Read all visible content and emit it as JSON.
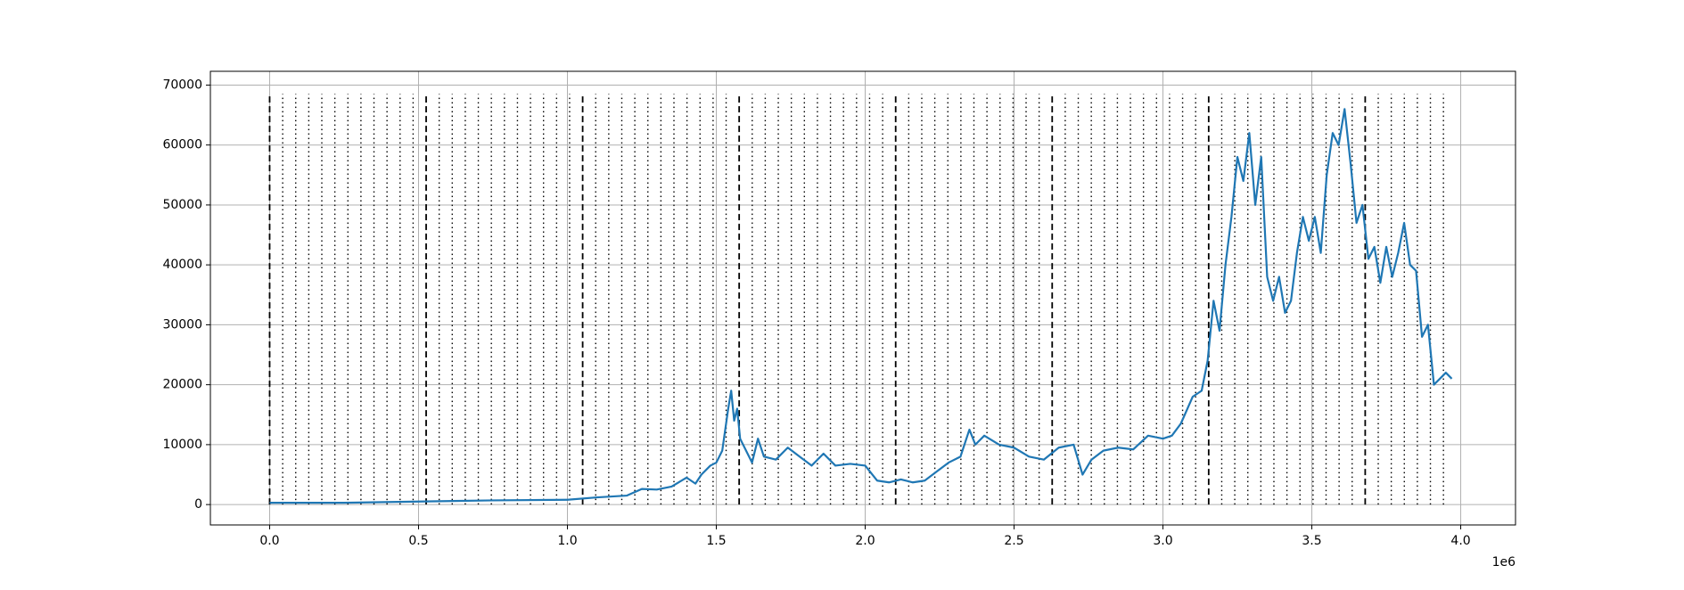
{
  "chart_data": {
    "type": "line",
    "x_offset_label": "1e6",
    "xlim": [
      -199000,
      4184000
    ],
    "ylim": [
      -3400,
      72300
    ],
    "xticks": [
      {
        "value": 0,
        "label": "0.0"
      },
      {
        "value": 500000,
        "label": "0.5"
      },
      {
        "value": 1000000,
        "label": "1.0"
      },
      {
        "value": 1500000,
        "label": "1.5"
      },
      {
        "value": 2000000,
        "label": "2.0"
      },
      {
        "value": 2500000,
        "label": "2.5"
      },
      {
        "value": 3000000,
        "label": "3.0"
      },
      {
        "value": 3500000,
        "label": "3.5"
      },
      {
        "value": 4000000,
        "label": "4.0"
      }
    ],
    "yticks": [
      0,
      10000,
      20000,
      30000,
      40000,
      50000,
      60000,
      70000
    ],
    "grid": true,
    "vline_range": [
      0,
      68500
    ],
    "dashed_lines": [
      0,
      525600,
      1051200,
      1576800,
      2102400,
      2628000,
      3153600,
      3679200
    ],
    "dotted_lines": [
      43800,
      87600,
      131400,
      175200,
      219000,
      262800,
      306600,
      350400,
      394200,
      438000,
      481800,
      569400,
      613200,
      657000,
      700800,
      744600,
      788400,
      832200,
      876000,
      919800,
      963600,
      1007400,
      1095000,
      1138800,
      1182600,
      1226400,
      1270200,
      1314000,
      1357800,
      1401600,
      1445400,
      1489200,
      1533000,
      1620600,
      1664400,
      1708200,
      1752000,
      1795800,
      1839600,
      1883400,
      1927200,
      1971000,
      2014800,
      2058600,
      2146200,
      2190000,
      2233800,
      2277600,
      2321400,
      2365200,
      2409000,
      2452800,
      2496600,
      2540400,
      2584200,
      2671800,
      2715600,
      2759400,
      2803200,
      2847000,
      2890800,
      2934600,
      2978400,
      3022200,
      3066000,
      3109800,
      3197400,
      3241200,
      3285000,
      3328800,
      3372600,
      3416400,
      3460200,
      3504000,
      3547800,
      3591600,
      3635400,
      3723000,
      3766800,
      3810600,
      3854400,
      3898200,
      3942000
    ],
    "series": [
      {
        "color": "#1f77b4",
        "x": [
          0,
          250000,
          500000,
          750000,
          1000000,
          1100000,
          1200000,
          1250000,
          1300000,
          1350000,
          1400000,
          1430000,
          1450000,
          1480000,
          1500000,
          1520000,
          1540000,
          1550000,
          1560000,
          1570000,
          1580000,
          1600000,
          1620000,
          1640000,
          1660000,
          1700000,
          1740000,
          1780000,
          1820000,
          1860000,
          1900000,
          1950000,
          2000000,
          2040000,
          2080000,
          2120000,
          2160000,
          2200000,
          2240000,
          2280000,
          2320000,
          2350000,
          2370000,
          2400000,
          2450000,
          2500000,
          2550000,
          2600000,
          2650000,
          2700000,
          2730000,
          2760000,
          2800000,
          2850000,
          2900000,
          2950000,
          3000000,
          3030000,
          3060000,
          3100000,
          3130000,
          3150000,
          3170000,
          3190000,
          3210000,
          3230000,
          3250000,
          3270000,
          3290000,
          3310000,
          3330000,
          3350000,
          3370000,
          3390000,
          3410000,
          3430000,
          3450000,
          3470000,
          3490000,
          3510000,
          3530000,
          3550000,
          3570000,
          3590000,
          3610000,
          3630000,
          3650000,
          3670000,
          3690000,
          3710000,
          3730000,
          3750000,
          3770000,
          3790000,
          3810000,
          3830000,
          3850000,
          3870000,
          3890000,
          3910000,
          3930000,
          3950000,
          3970000
        ],
        "values": [
          300,
          300,
          500,
          700,
          800,
          1200,
          1500,
          2600,
          2500,
          3000,
          4500,
          3500,
          5000,
          6500,
          7000,
          9000,
          16000,
          19000,
          14000,
          16000,
          11000,
          9000,
          7000,
          11000,
          8000,
          7500,
          9500,
          8000,
          6500,
          8500,
          6500,
          6800,
          6500,
          4000,
          3700,
          4200,
          3700,
          4000,
          5500,
          7000,
          8000,
          12500,
          10000,
          11500,
          10000,
          9500,
          8000,
          7500,
          9500,
          10000,
          5000,
          7500,
          9000,
          9500,
          9200,
          11500,
          11000,
          11500,
          13500,
          18000,
          19000,
          24000,
          34000,
          29000,
          40000,
          48000,
          58000,
          54000,
          62000,
          50000,
          58000,
          38000,
          34000,
          38000,
          32000,
          34000,
          42000,
          48000,
          44000,
          48000,
          42000,
          55000,
          62000,
          60000,
          66000,
          57000,
          47000,
          50000,
          41000,
          43000,
          37000,
          43000,
          38000,
          42000,
          47000,
          40000,
          39000,
          28000,
          30000,
          20000,
          21000,
          22000,
          21000
        ]
      }
    ]
  }
}
